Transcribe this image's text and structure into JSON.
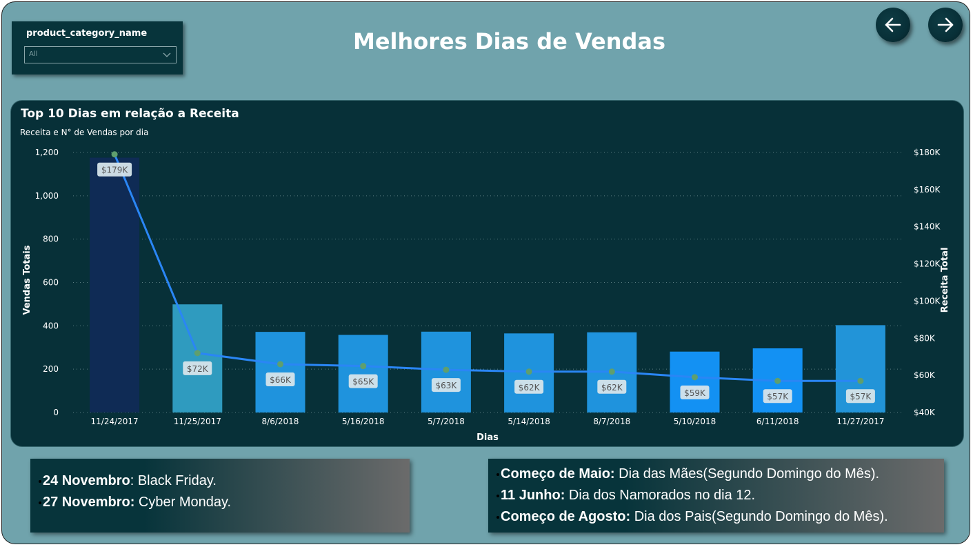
{
  "header": {
    "title": "Melhores Dias de Vendas",
    "back_icon": "arrow-left-icon",
    "forward_icon": "arrow-right-icon"
  },
  "filter": {
    "label": "product_category_name",
    "value": "All"
  },
  "chart": {
    "title": "Top 10 Dias em relação a Receita",
    "subtitle": "Receita e N° de Vendas por dia"
  },
  "chart_data": {
    "type": "bar",
    "categories": [
      "11/24/2017",
      "11/25/2017",
      "8/6/2018",
      "5/16/2018",
      "5/7/2018",
      "5/14/2018",
      "8/7/2018",
      "5/10/2018",
      "6/11/2018",
      "11/27/2017"
    ],
    "series": [
      {
        "name": "Vendas Totais",
        "type": "bar",
        "axis": "left",
        "values": [
          1176,
          499,
          372,
          358,
          373,
          365,
          370,
          281,
          296,
          403
        ],
        "colors": [
          "#0f2b55",
          "#2f9bbf",
          "#1f93dd",
          "#1f93dd",
          "#1f93dd",
          "#1f93dd",
          "#1f93dd",
          "#1391f3",
          "#1391f3",
          "#2294d8"
        ]
      },
      {
        "name": "Receita Total",
        "type": "line",
        "axis": "right",
        "values": [
          179000,
          72000,
          66000,
          65000,
          63000,
          62000,
          62000,
          59000,
          57000,
          57000
        ],
        "labels": [
          "$179K",
          "$72K",
          "$66K",
          "$65K",
          "$63K",
          "$62K",
          "$62K",
          "$59K",
          "$57K",
          "$57K"
        ],
        "line_color": "#2a86f5",
        "marker_color": "#5f9f6e"
      }
    ],
    "xlabel": "Dias",
    "ylabel_left": "Vendas Totais",
    "ylabel_right": "Receita Total",
    "ylim_left": [
      0,
      1200
    ],
    "yticks_left": [
      "0",
      "200",
      "400",
      "600",
      "800",
      "1,000",
      "1,200"
    ],
    "ylim_right": [
      40000,
      180000
    ],
    "yticks_right": [
      "$40K",
      "$60K",
      "$80K",
      "$100K",
      "$120K",
      "$140K",
      "$160K",
      "$180K"
    ],
    "grid": true
  },
  "notes_left": [
    {
      "bold": "24 Novembro",
      "text": ": Black Friday."
    },
    {
      "bold": "27 Novembro:",
      "text": " Cyber Monday."
    }
  ],
  "notes_right": [
    {
      "bold": "Começo de Maio:",
      "text": " Dia das Mães(Segundo Domingo do Mês)."
    },
    {
      "bold": "11 Junho:",
      "text": " Dia dos Namorados no dia 12."
    },
    {
      "bold": "Começo de Agosto:",
      "text": " Dia dos Pais(Segundo Domingo do Mês)."
    }
  ]
}
